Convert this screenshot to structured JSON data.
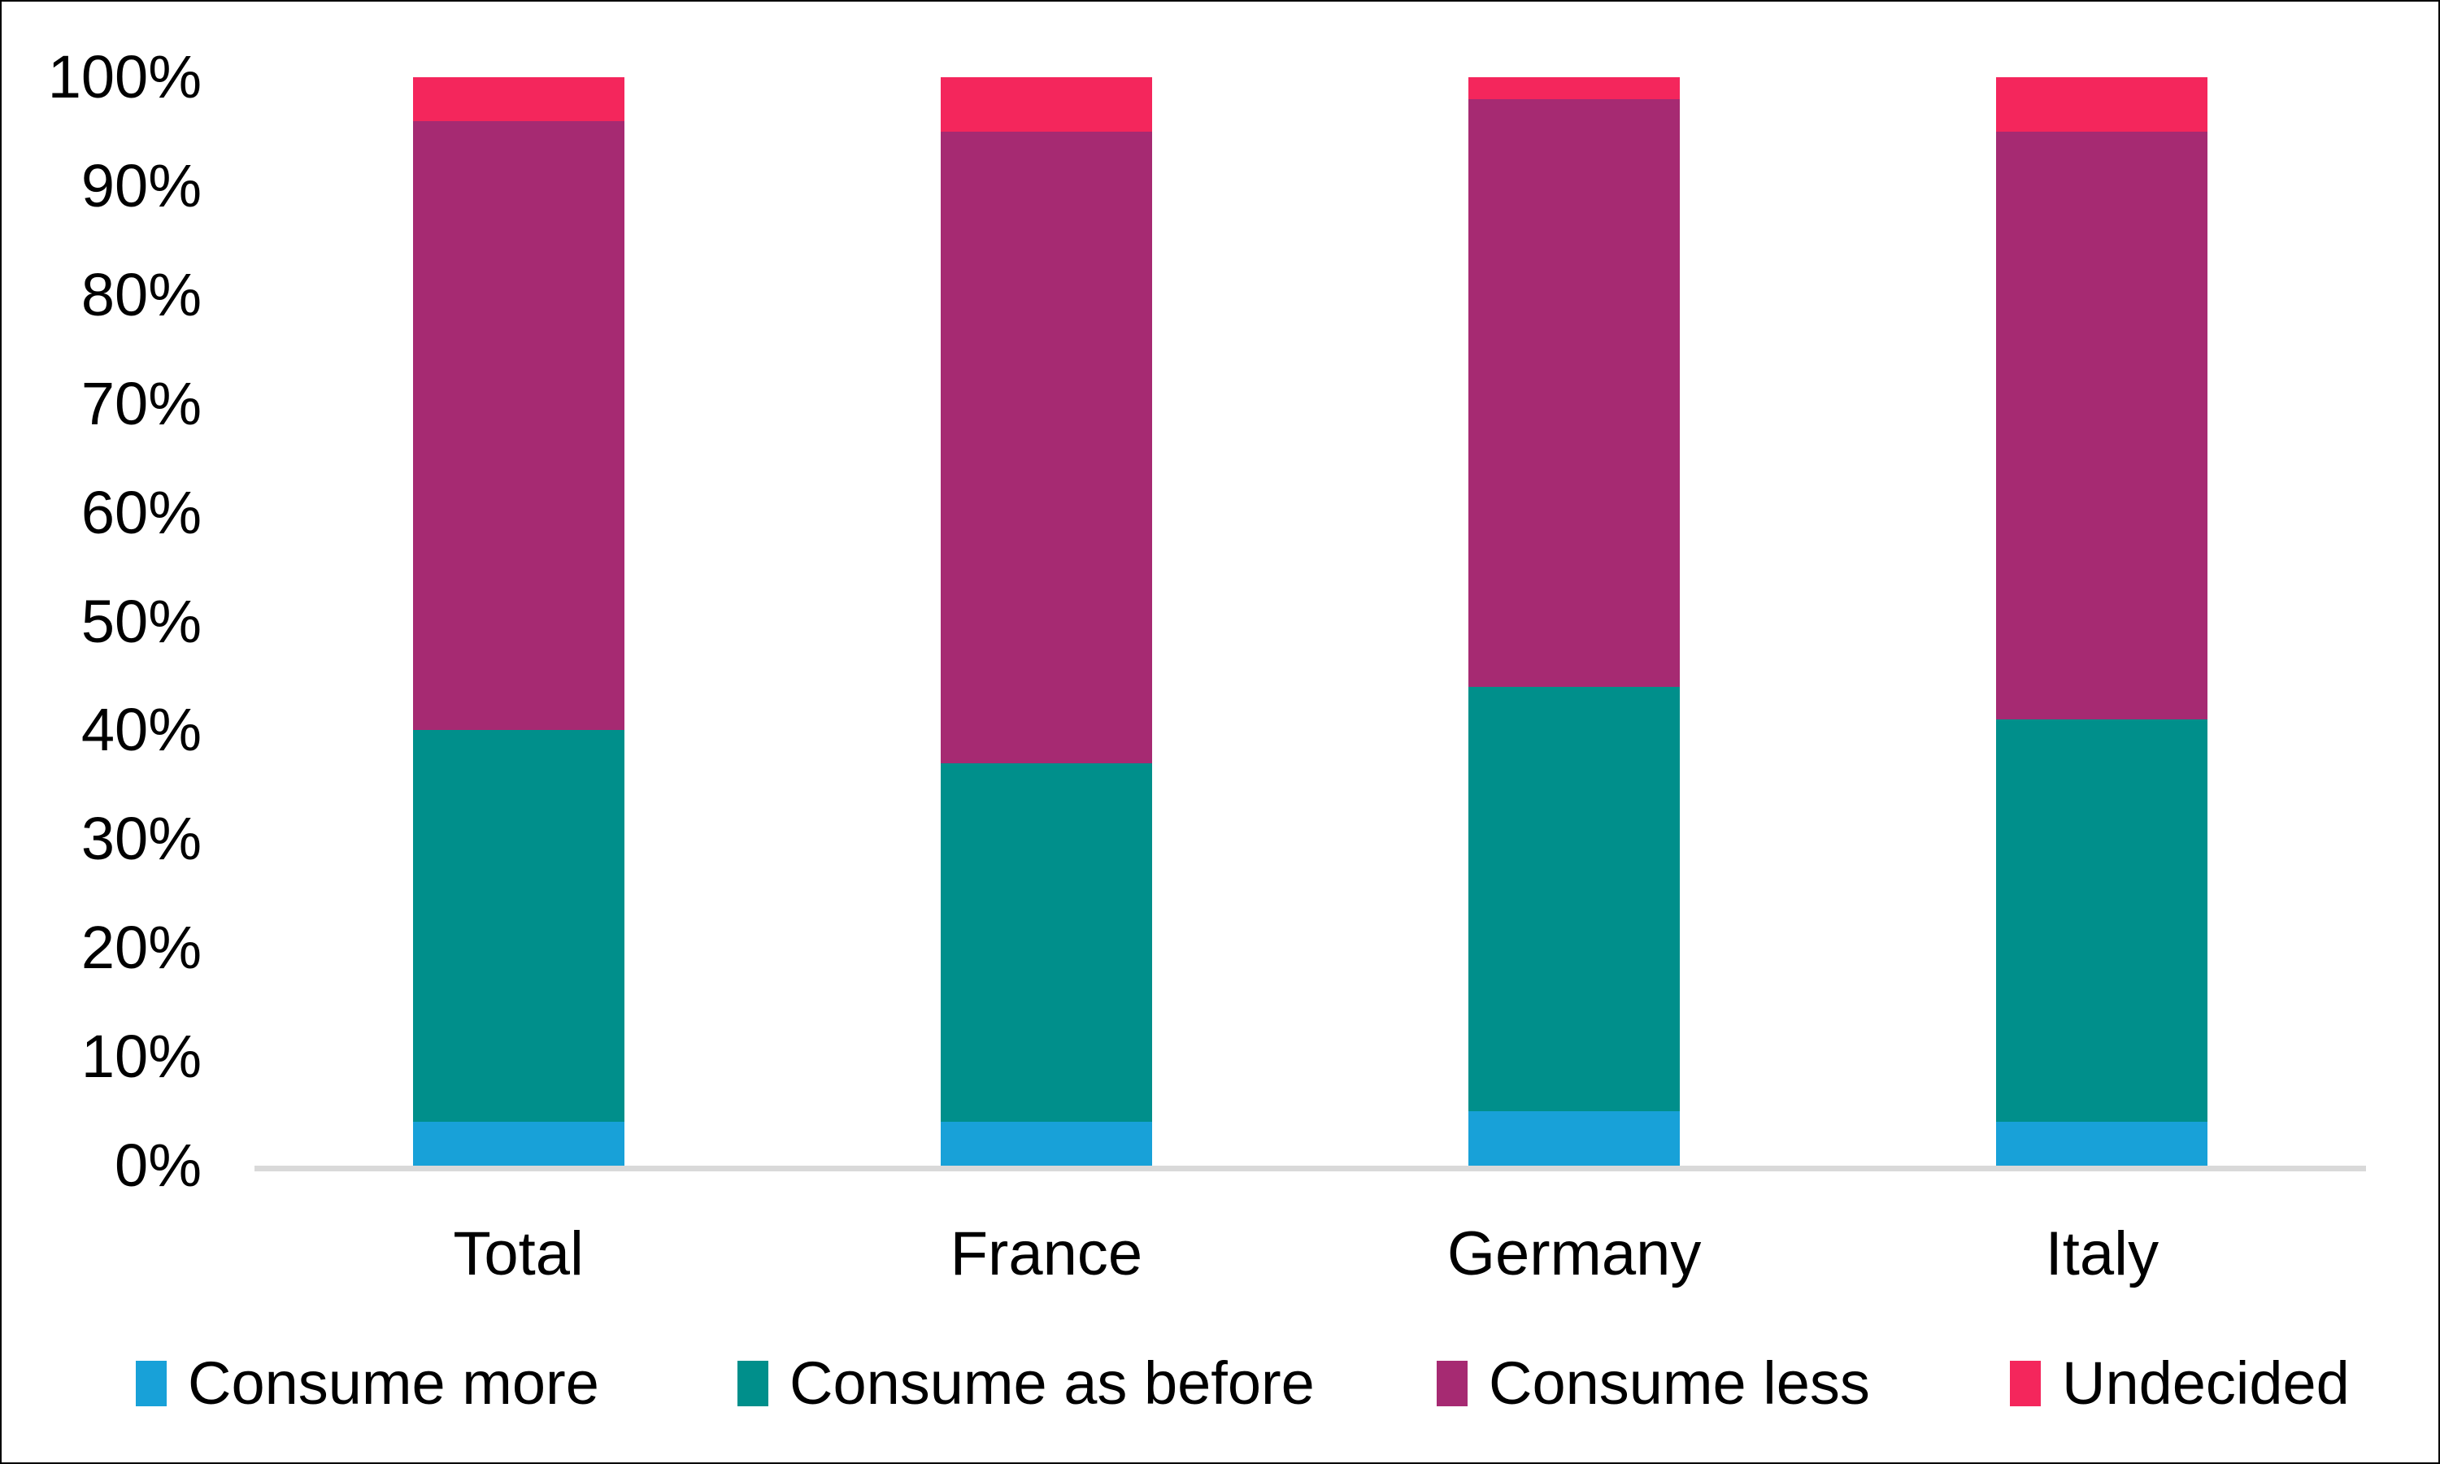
{
  "chart_data": {
    "type": "bar",
    "stacked": true,
    "percent_stacked": true,
    "title": "",
    "xlabel": "",
    "ylabel": "",
    "categories": [
      "Total",
      "France",
      "Germany",
      "Italy"
    ],
    "series": [
      {
        "name": "Consume more",
        "color": "#18A1D8",
        "values": [
          4,
          4,
          5,
          4
        ]
      },
      {
        "name": "Consume as before",
        "color": "#008F8B",
        "values": [
          36,
          33,
          39,
          37
        ]
      },
      {
        "name": "Consume less",
        "color": "#A62A72",
        "values": [
          56,
          58,
          54,
          54
        ]
      },
      {
        "name": "Undecided",
        "color": "#F4265C",
        "values": [
          4,
          5,
          2,
          5
        ]
      }
    ],
    "ylim": [
      0,
      100
    ],
    "ytick_step": 10,
    "ytick_labels": [
      "0%",
      "10%",
      "20%",
      "30%",
      "40%",
      "50%",
      "60%",
      "70%",
      "80%",
      "90%",
      "100%"
    ],
    "grid": false,
    "legend_position": "bottom",
    "colors": {
      "axis_line": "#D9D9D9",
      "text": "#000000",
      "background": "#FFFFFF",
      "frame_border": "#000000"
    }
  }
}
